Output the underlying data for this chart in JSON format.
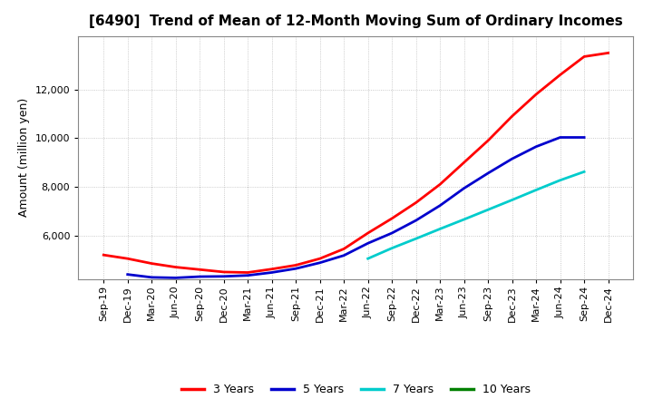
{
  "title": "[6490]  Trend of Mean of 12-Month Moving Sum of Ordinary Incomes",
  "ylabel": "Amount (million yen)",
  "background_color": "#ffffff",
  "plot_bg_color": "#ffffff",
  "grid_color": "#bbbbbb",
  "ylim": [
    4200,
    14200
  ],
  "yticks": [
    6000,
    8000,
    10000,
    12000
  ],
  "x_labels": [
    "Sep-19",
    "Dec-19",
    "Mar-20",
    "Jun-20",
    "Sep-20",
    "Dec-20",
    "Mar-21",
    "Jun-21",
    "Sep-21",
    "Dec-21",
    "Mar-22",
    "Jun-22",
    "Sep-22",
    "Dec-22",
    "Mar-23",
    "Jun-23",
    "Sep-23",
    "Dec-23",
    "Mar-24",
    "Jun-24",
    "Sep-24",
    "Dec-24"
  ],
  "series": {
    "3 Years": {
      "color": "#ff0000",
      "data": [
        5200,
        5050,
        4850,
        4700,
        4600,
        4500,
        4480,
        4620,
        4780,
        5050,
        5450,
        6100,
        6700,
        7350,
        8100,
        9000,
        9900,
        10900,
        11800,
        12600,
        13350,
        13500
      ]
    },
    "5 Years": {
      "color": "#0000cd",
      "data": [
        null,
        4400,
        4280,
        4260,
        4310,
        4320,
        4360,
        4480,
        4640,
        4880,
        5180,
        5680,
        6100,
        6620,
        7230,
        7940,
        8560,
        9150,
        9650,
        10030,
        10030,
        null
      ]
    },
    "7 Years": {
      "color": "#00cccc",
      "data": [
        null,
        null,
        null,
        null,
        null,
        null,
        null,
        null,
        null,
        null,
        null,
        5050,
        5480,
        5870,
        6270,
        6660,
        7060,
        7460,
        7870,
        8270,
        8620,
        null
      ]
    },
    "10 Years": {
      "color": "#008000",
      "data": [
        null,
        null,
        null,
        null,
        null,
        null,
        null,
        null,
        null,
        null,
        null,
        null,
        null,
        null,
        null,
        null,
        null,
        null,
        null,
        null,
        null,
        null
      ]
    }
  },
  "legend_entries": [
    "3 Years",
    "5 Years",
    "7 Years",
    "10 Years"
  ],
  "legend_colors": [
    "#ff0000",
    "#0000cd",
    "#00cccc",
    "#008000"
  ],
  "title_fontsize": 11,
  "label_fontsize": 9,
  "tick_fontsize": 8
}
